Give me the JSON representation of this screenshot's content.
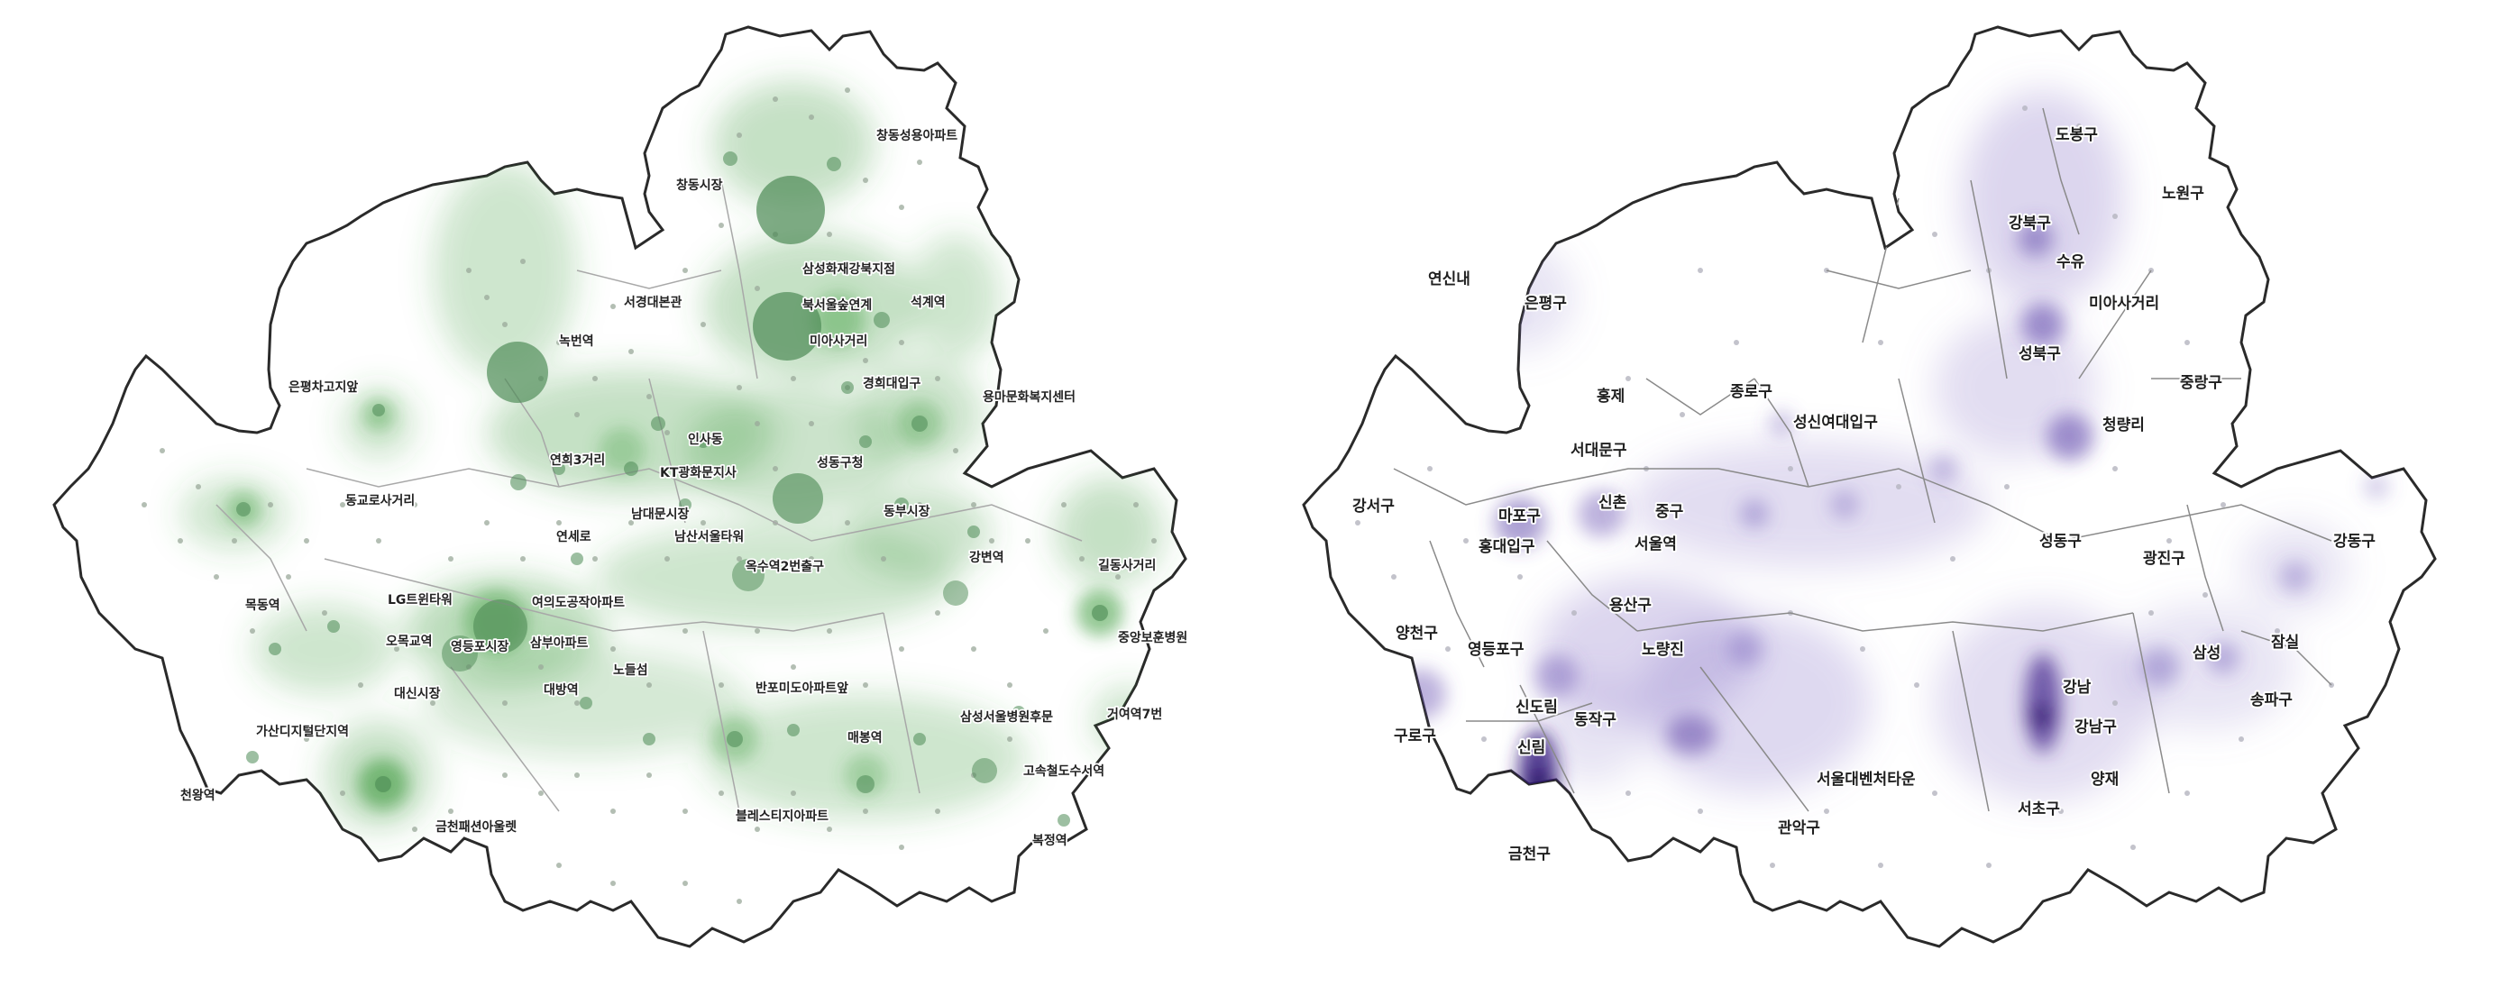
{
  "colors": {
    "left_heat": "#3f9c3f",
    "left_bubble": "#4d8a55",
    "right_heat": "#5a3fa8",
    "boundary": "#2a2a2a",
    "inner_boundary": "#a0a0a0",
    "point": "#9a9a9a"
  },
  "left_map": {
    "labels": [
      "창동성용아파트",
      "창동시장",
      "삼성화재강북지점",
      "북서울숲연계",
      "석계역",
      "서경대본관",
      "녹번역",
      "미아사거리",
      "은평차고지앞",
      "경희대입구",
      "용마문화복지센터",
      "인사동",
      "연희3거리",
      "KT광화문지사",
      "성동구청",
      "동교로사거리",
      "동부시장",
      "남대문시장",
      "남산서울타워",
      "연세로",
      "옥수역2번출구",
      "강변역",
      "길동사거리",
      "목동역",
      "LG트윈타워",
      "여의도공작아파트",
      "중앙보훈병원",
      "오목교역",
      "영등포시장",
      "삼부아파트",
      "노들섬",
      "대신시장",
      "대방역",
      "반포미도아파트앞",
      "삼성서울병원후문",
      "거여역7번",
      "가산디지털단지역",
      "매봉역",
      "고속철도수서역",
      "천왕역",
      "금천패션아울렛",
      "블레스티지아파트",
      "복정역"
    ]
  },
  "right_map": {
    "districts": [
      "도봉구",
      "노원구",
      "강북구",
      "수유",
      "은평구",
      "미아사거리",
      "성북구",
      "중랑구",
      "종로구",
      "홍제",
      "성신여대입구",
      "청량리",
      "서대문구",
      "강서구",
      "마포구",
      "신촌",
      "중구",
      "홍대입구",
      "서울역",
      "성동구",
      "광진구",
      "강동구",
      "용산구",
      "양천구",
      "영등포구",
      "노량진",
      "잠실",
      "삼성",
      "신도림",
      "동작구",
      "강남",
      "송파구",
      "구로구",
      "신림",
      "강남구",
      "서울대벤처타운",
      "양재",
      "서초구",
      "관악구",
      "금천구",
      "연신내"
    ]
  }
}
